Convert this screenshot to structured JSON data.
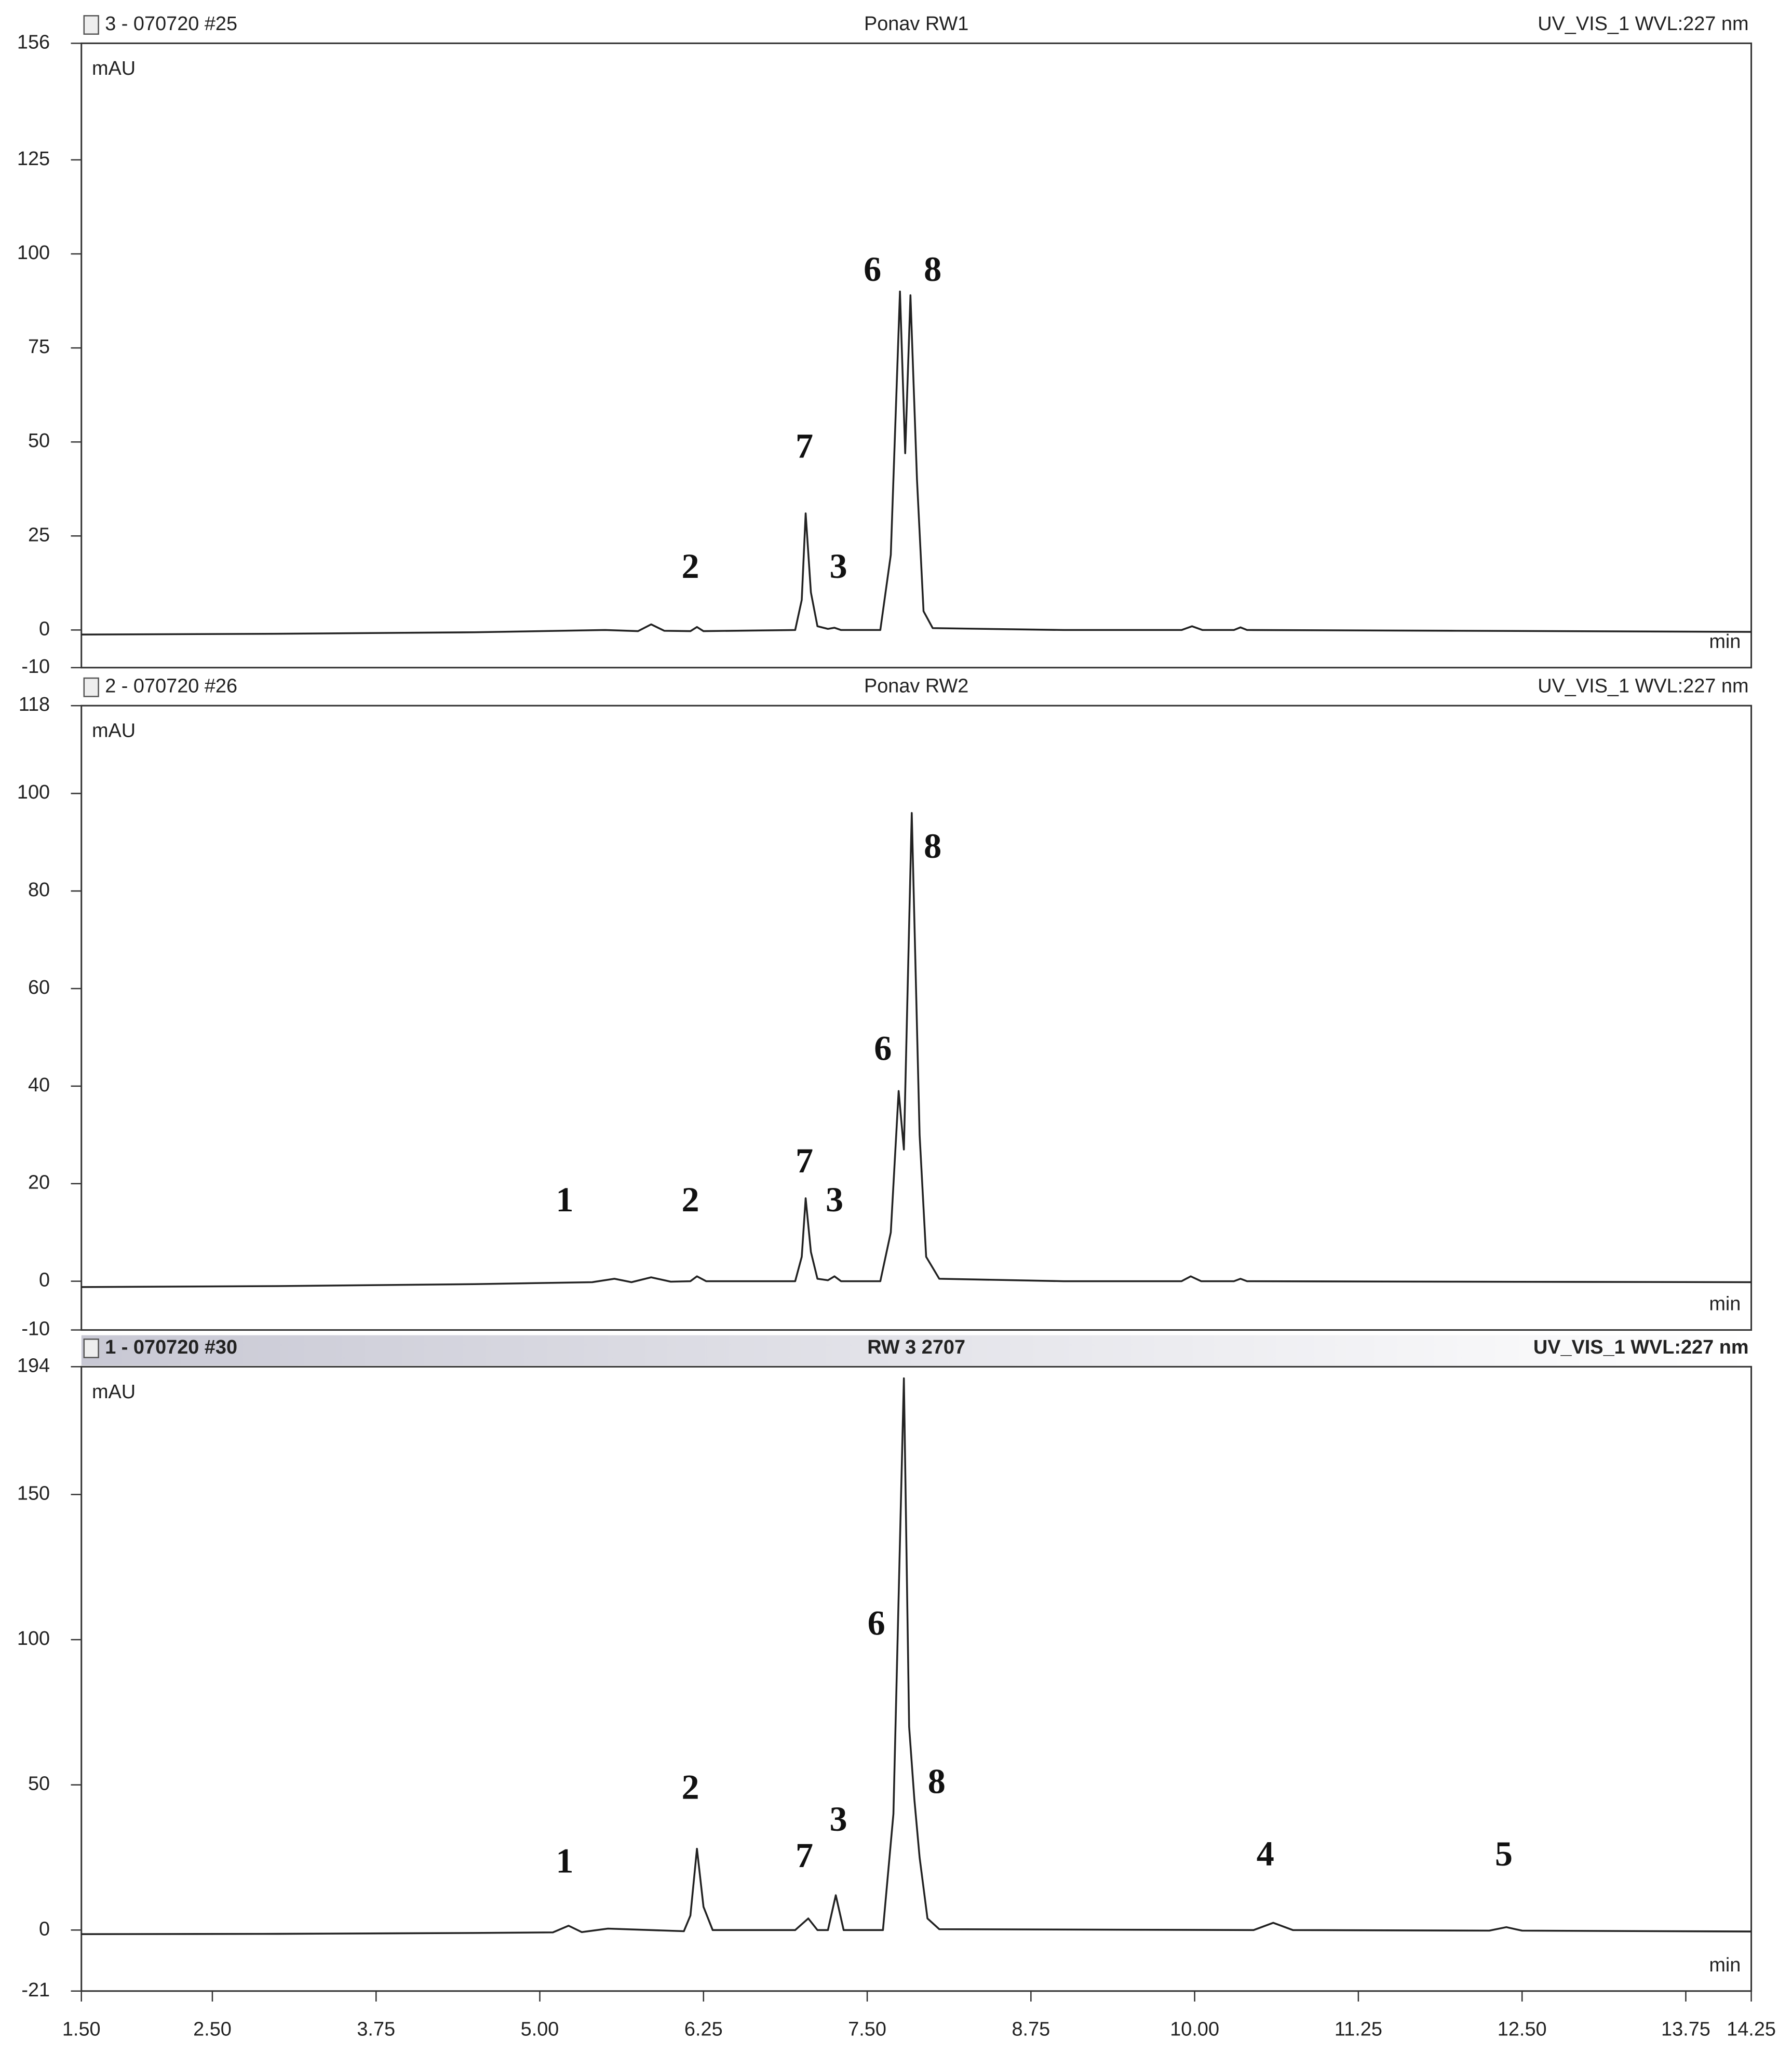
{
  "chart_data": [
    {
      "type": "line",
      "sample": "3 - 070720 #25",
      "title": "Ponav RW1",
      "channel": "UV_VIS_1 WVL:227 nm",
      "y_label": "mAU",
      "x_label": "min",
      "color": "#222222",
      "xlim": [
        1.5,
        14.25
      ],
      "ylim": [
        -10,
        156
      ],
      "yticks": [
        -10,
        0,
        25,
        50,
        75,
        100,
        125,
        156
      ],
      "x": [
        1.5,
        3.0,
        4.5,
        5.5,
        5.75,
        5.85,
        5.95,
        6.15,
        6.2,
        6.25,
        6.95,
        7.0,
        7.03,
        7.07,
        7.12,
        7.2,
        7.25,
        7.3,
        7.6,
        7.68,
        7.75,
        7.79,
        7.83,
        7.88,
        7.93,
        8.0,
        9.0,
        9.9,
        9.98,
        10.06,
        10.3,
        10.35,
        10.4,
        12.0,
        14.25
      ],
      "values": [
        -1.2,
        -1.0,
        -0.6,
        0,
        -0.3,
        1.5,
        -0.2,
        -0.3,
        0.8,
        -0.3,
        0,
        8,
        31,
        10,
        1,
        0.3,
        0.6,
        0,
        0,
        20,
        90,
        47,
        89,
        40,
        5,
        0.5,
        0,
        0,
        1,
        0,
        0,
        0.7,
        0,
        -0.2,
        -0.5
      ],
      "annotations": [
        {
          "text": "6",
          "x": 7.54,
          "y": 95
        },
        {
          "text": "8",
          "x": 8.0,
          "y": 95
        },
        {
          "text": "7",
          "x": 7.02,
          "y": 48
        },
        {
          "text": "2",
          "x": 6.15,
          "y": 16
        },
        {
          "text": "3",
          "x": 7.28,
          "y": 16
        }
      ]
    },
    {
      "type": "line",
      "sample": "2 - 070720 #26",
      "title": "Ponav RW2",
      "channel": "UV_VIS_1 WVL:227 nm",
      "y_label": "mAU",
      "x_label": "min",
      "color": "#222222",
      "xlim": [
        1.5,
        14.25
      ],
      "ylim": [
        -10,
        118
      ],
      "yticks": [
        -10,
        0,
        20,
        40,
        60,
        80,
        100,
        118
      ],
      "x": [
        1.5,
        3.0,
        4.5,
        5.4,
        5.57,
        5.7,
        5.85,
        6.0,
        6.15,
        6.2,
        6.27,
        6.95,
        7.0,
        7.03,
        7.07,
        7.12,
        7.2,
        7.25,
        7.3,
        7.6,
        7.68,
        7.74,
        7.78,
        7.84,
        7.9,
        7.95,
        8.05,
        9.0,
        9.9,
        9.97,
        10.05,
        10.3,
        10.35,
        10.4,
        12.0,
        14.25
      ],
      "values": [
        -1.2,
        -1.0,
        -0.6,
        -0.2,
        0.5,
        -0.2,
        0.8,
        -0.1,
        0,
        1,
        0,
        0,
        5,
        17,
        6,
        0.5,
        0.2,
        1,
        0,
        0,
        10,
        39,
        27,
        96,
        30,
        5,
        0.5,
        0,
        0,
        1,
        0,
        0,
        0.5,
        0,
        -0.1,
        -0.2
      ],
      "annotations": [
        {
          "text": "8",
          "x": 8.0,
          "y": 88.5
        },
        {
          "text": "6",
          "x": 7.62,
          "y": 47
        },
        {
          "text": "7",
          "x": 7.02,
          "y": 24
        },
        {
          "text": "1",
          "x": 5.19,
          "y": 16
        },
        {
          "text": "2",
          "x": 6.15,
          "y": 16
        },
        {
          "text": "3",
          "x": 7.25,
          "y": 16
        }
      ]
    },
    {
      "type": "line",
      "sample": "1 - 070720 #30",
      "title": "RW 3 2707",
      "channel": "UV_VIS_1 WVL:227 nm",
      "y_label": "mAU",
      "x_label": "min",
      "color": "#222222",
      "xlim": [
        1.5,
        14.25
      ],
      "ylim": [
        -21,
        194
      ],
      "yticks": [
        -21,
        0,
        50,
        100,
        150,
        194
      ],
      "xticks": [
        {
          "value": 1.5,
          "label": "1.50"
        },
        {
          "value": 2.5,
          "label": "2.50"
        },
        {
          "value": 3.75,
          "label": "3.75"
        },
        {
          "value": 5.0,
          "label": "5.00"
        },
        {
          "value": 6.25,
          "label": "6.25"
        },
        {
          "value": 7.5,
          "label": "7.50"
        },
        {
          "value": 8.75,
          "label": "8.75"
        },
        {
          "value": 10.0,
          "label": "10.00"
        },
        {
          "value": 11.25,
          "label": "11.25"
        },
        {
          "value": 12.5,
          "label": "12.50"
        },
        {
          "value": 13.75,
          "label": "13.75"
        },
        {
          "value": 14.25,
          "label": "14.25"
        }
      ],
      "x": [
        1.5,
        3.0,
        4.5,
        5.1,
        5.22,
        5.32,
        5.52,
        6.1,
        6.15,
        6.2,
        6.25,
        6.32,
        6.95,
        7.05,
        7.12,
        7.2,
        7.26,
        7.32,
        7.62,
        7.7,
        7.78,
        7.82,
        7.86,
        7.9,
        7.96,
        8.05,
        10.45,
        10.6,
        10.75,
        12.25,
        12.38,
        12.5,
        14.25
      ],
      "values": [
        -1.4,
        -1.3,
        -1.0,
        -0.8,
        1.5,
        -0.7,
        0.5,
        -0.4,
        5,
        28,
        8,
        0,
        0,
        4,
        0,
        0,
        12,
        0,
        0,
        40,
        190,
        70,
        45,
        25,
        4,
        0.3,
        0,
        2.5,
        0,
        -0.2,
        1,
        -0.2,
        -0.5
      ],
      "annotations": [
        {
          "text": "6",
          "x": 7.57,
          "y": 104.5
        },
        {
          "text": "2",
          "x": 6.15,
          "y": 48
        },
        {
          "text": "8",
          "x": 8.03,
          "y": 50
        },
        {
          "text": "3",
          "x": 7.28,
          "y": 37
        },
        {
          "text": "7",
          "x": 7.02,
          "y": 24.5
        },
        {
          "text": "1",
          "x": 5.19,
          "y": 22.6
        },
        {
          "text": "4",
          "x": 10.54,
          "y": 25
        },
        {
          "text": "5",
          "x": 12.36,
          "y": 25
        }
      ]
    }
  ]
}
